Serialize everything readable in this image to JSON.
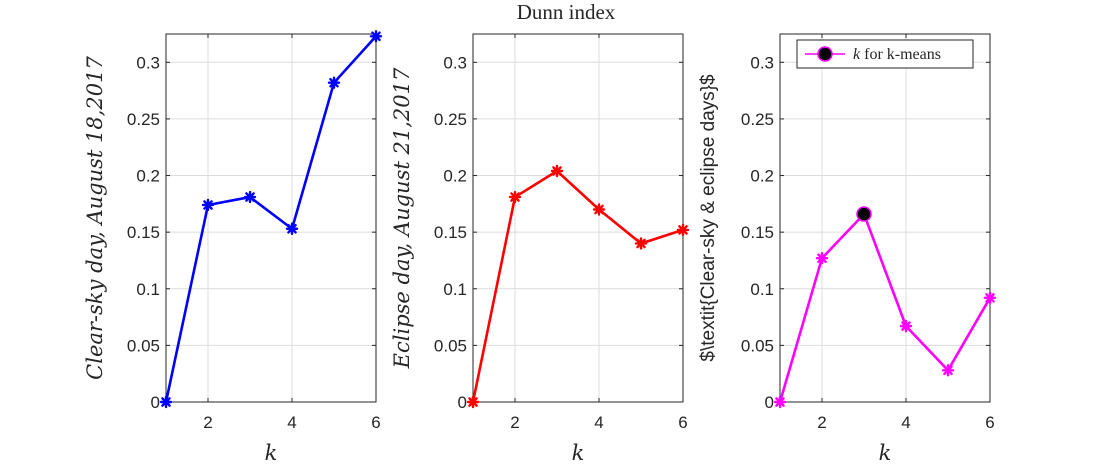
{
  "figure": {
    "title": "Dunn index"
  },
  "chart_data": [
    {
      "type": "line",
      "title": "",
      "xlabel": "k",
      "ylabel": "Clear-sky day, August 18,2017",
      "xlim": [
        1,
        6
      ],
      "ylim": [
        0,
        0.325
      ],
      "xticks": [
        2,
        4,
        6
      ],
      "yticks": [
        0,
        0.05,
        0.1,
        0.15,
        0.2,
        0.25,
        0.3
      ],
      "ytick_labels": [
        "0",
        "0.05",
        "0.1",
        "0.15",
        "0.2",
        "0.25",
        "0.3"
      ],
      "grid": true,
      "series": [
        {
          "x": [
            1,
            2,
            3,
            4,
            5,
            6
          ],
          "values": [
            0,
            0.174,
            0.181,
            0.153,
            0.282,
            0.323
          ],
          "color": "#0000ff",
          "marker": "asterisk"
        }
      ]
    },
    {
      "type": "line",
      "title": "",
      "xlabel": "k",
      "ylabel": "Eclipse day, August 21,2017",
      "xlim": [
        1,
        6
      ],
      "ylim": [
        0,
        0.325
      ],
      "xticks": [
        2,
        4,
        6
      ],
      "yticks": [
        0,
        0.05,
        0.1,
        0.15,
        0.2,
        0.25,
        0.3
      ],
      "ytick_labels": [
        "0",
        "0.05",
        "0.1",
        "0.15",
        "0.2",
        "0.25",
        "0.3"
      ],
      "grid": true,
      "series": [
        {
          "x": [
            1,
            2,
            3,
            4,
            5,
            6
          ],
          "values": [
            0,
            0.181,
            0.204,
            0.17,
            0.14,
            0.152
          ],
          "color": "#ff0000",
          "marker": "asterisk"
        }
      ]
    },
    {
      "type": "line",
      "title": "",
      "xlabel": "k",
      "ylabel": "$\\textit{Clear-sky & eclipse days}$",
      "xlim": [
        1,
        6
      ],
      "ylim": [
        0,
        0.325
      ],
      "xticks": [
        2,
        4,
        6
      ],
      "yticks": [
        0,
        0.05,
        0.1,
        0.15,
        0.2,
        0.25,
        0.3
      ],
      "ytick_labels": [
        "0",
        "0.05",
        "0.1",
        "0.15",
        "0.2",
        "0.25",
        "0.3"
      ],
      "grid": true,
      "legend": {
        "entries": [
          {
            "symbol": "k",
            "text": " for k-means"
          }
        ],
        "placement": "top-right"
      },
      "highlight": {
        "x": 3,
        "y": 0.166,
        "color": "#000000"
      },
      "series": [
        {
          "x": [
            1,
            2,
            3,
            4,
            5,
            6
          ],
          "values": [
            0,
            0.127,
            0.166,
            0.067,
            0.028,
            0.092
          ],
          "color": "#ff00ff",
          "marker": "asterisk"
        }
      ]
    }
  ]
}
